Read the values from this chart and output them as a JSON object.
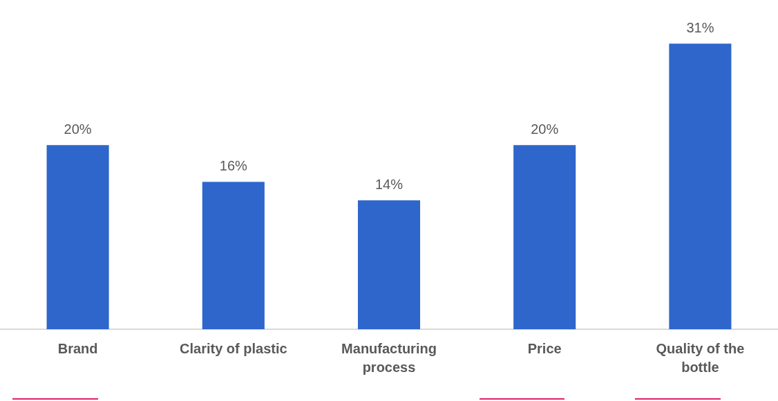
{
  "chart_data": {
    "type": "bar",
    "categories": [
      "Brand",
      "Clarity of plastic",
      "Manufacturing process",
      "Price",
      "Quality of the bottle"
    ],
    "values": [
      20,
      16,
      14,
      20,
      31
    ],
    "value_labels": [
      "20%",
      "16%",
      "14%",
      "20%",
      "31%"
    ],
    "color": "#2e66cc",
    "grid": false,
    "legend": false
  }
}
